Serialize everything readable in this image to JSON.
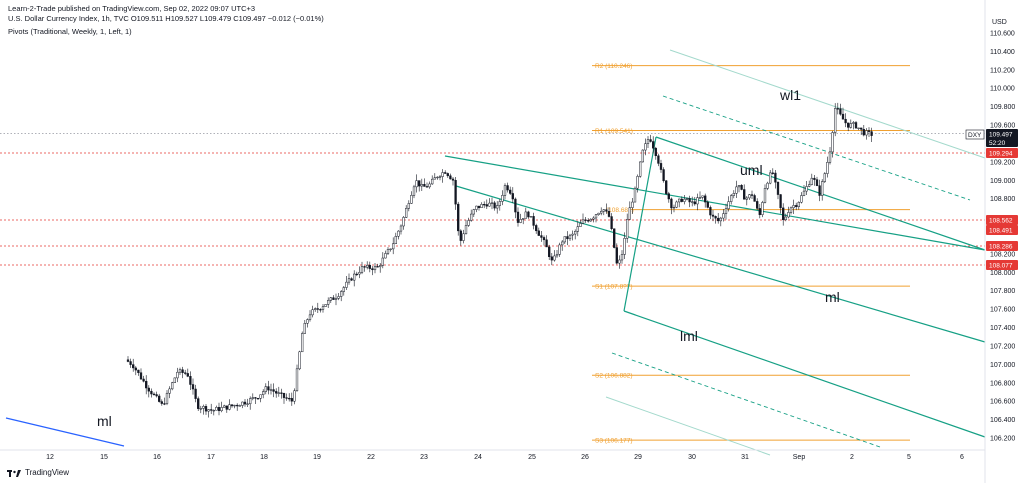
{
  "header": {
    "published": "Learn-2-Trade published on TradingView.com, Sep 02, 2022 09:07 UTC+3",
    "symbol_line": "U.S. Dollar Currency Index, 1h, TVC  O109.511  H109.527  L109.479  C109.497  −0.012 (−0.01%)",
    "indicator_line": "Pivots (Traditional, Weekly, 1, Left, 1)"
  },
  "branding": {
    "logo_text": "TradingView"
  },
  "chart_data": {
    "type": "candlestick",
    "symbol": "DXY",
    "currency": "USD",
    "x_tick_labels": [
      "12",
      "15",
      "16",
      "17",
      "18",
      "19",
      "22",
      "23",
      "24",
      "25",
      "26",
      "29",
      "30",
      "31",
      "Sep",
      "2",
      "5",
      "6"
    ],
    "y_tick_labels": [
      "110.600",
      "110.400",
      "110.200",
      "110.000",
      "109.800",
      "109.600",
      "109.200",
      "109.000",
      "108.800",
      "108.200",
      "108.000",
      "107.800",
      "107.600",
      "107.400",
      "107.200",
      "107.000",
      "106.800",
      "106.600",
      "106.400",
      "106.200"
    ],
    "y_range": [
      106.15,
      110.65
    ],
    "pivots": [
      {
        "label": "R2 (110.246)",
        "value": 110.246
      },
      {
        "label": "R1 (109.541)",
        "value": 109.541
      },
      {
        "label": "(108.681)",
        "value": 108.681
      },
      {
        "label": "S1 (107.8??)",
        "value": 107.85
      },
      {
        "label": "S2 (106.882)",
        "value": 106.882
      },
      {
        "label": "S3 (106.177)",
        "value": 106.177
      }
    ],
    "horizontal_levels": [
      {
        "value": 109.294,
        "label": "109.294",
        "style": "dotted",
        "color": "#e53935"
      },
      {
        "value": 108.562,
        "label": "108.562",
        "style": "dotted",
        "color": "#e53935"
      },
      {
        "value": 108.491,
        "label": "108.491",
        "style": "none",
        "color": "#e53935"
      },
      {
        "value": 108.286,
        "label": "108.286",
        "style": "dotted",
        "color": "#e53935"
      },
      {
        "value": 108.077,
        "label": "108.077",
        "style": "dotted",
        "color": "#e53935"
      }
    ],
    "last_price": {
      "symbol": "DXY",
      "value": "109.497",
      "countdown": "52:20"
    },
    "annotations": [
      "wl1",
      "uml",
      "ml",
      "lml",
      "ml"
    ],
    "price_series": [
      [
        16,
        106.2
      ],
      [
        16.3,
        106.3
      ],
      [
        16.5,
        106.55
      ],
      [
        16.7,
        106.6
      ],
      [
        16.9,
        106.55
      ],
      [
        17.0,
        106.8
      ],
      [
        17.15,
        106.45
      ],
      [
        17.3,
        106.55
      ],
      [
        17.5,
        106.45
      ],
      [
        17.7,
        106.48
      ],
      [
        17.9,
        106.38
      ],
      [
        18.0,
        106.55
      ],
      [
        18.2,
        106.8
      ],
      [
        18.4,
        106.65
      ],
      [
        18.6,
        106.72
      ],
      [
        18.8,
        106.55
      ],
      [
        19.0,
        106.7
      ],
      [
        19.15,
        106.95
      ],
      [
        19.3,
        107.35
      ],
      [
        19.45,
        107.55
      ],
      [
        19.6,
        107.6
      ],
      [
        19.8,
        107.7
      ],
      [
        20.0,
        107.9
      ],
      [
        20.2,
        108.05
      ],
      [
        20.4,
        108.0
      ],
      [
        20.6,
        108.1
      ],
      [
        20.8,
        108.05
      ],
      [
        21.0,
        108.3
      ],
      [
        21.2,
        108.5
      ],
      [
        21.4,
        108.8
      ],
      [
        21.55,
        109.05
      ],
      [
        21.7,
        108.9
      ],
      [
        21.9,
        108.95
      ],
      [
        22.05,
        109.1
      ],
      [
        22.2,
        108.95
      ],
      [
        22.35,
        108.55
      ],
      [
        22.5,
        108.0
      ],
      [
        22.65,
        108.3
      ],
      [
        22.8,
        108.5
      ],
      [
        23.0,
        108.65
      ],
      [
        23.2,
        108.75
      ],
      [
        23.35,
        108.55
      ],
      [
        23.5,
        108.7
      ],
      [
        23.65,
        109.05
      ],
      [
        23.8,
        108.7
      ],
      [
        24.0,
        108.55
      ],
      [
        24.2,
        108.4
      ],
      [
        24.4,
        108.15
      ],
      [
        24.6,
        108.3
      ],
      [
        24.8,
        108.4
      ],
      [
        25.0,
        108.45
      ],
      [
        25.2,
        108.6
      ],
      [
        25.4,
        108.4
      ],
      [
        25.55,
        108.2
      ],
      [
        25.7,
        107.8
      ],
      [
        25.85,
        108.5
      ],
      [
        26.0,
        109.0
      ],
      [
        26.15,
        109.35
      ],
      [
        26.3,
        109.3
      ],
      [
        26.45,
        109.1
      ],
      [
        26.6,
        108.8
      ],
      [
        26.8,
        108.7
      ],
      [
        27.0,
        108.55
      ],
      [
        27.2,
        108.8
      ],
      [
        27.4,
        108.7
      ],
      [
        27.6,
        108.8
      ],
      [
        27.8,
        108.45
      ],
      [
        28.0,
        108.75
      ],
      [
        28.2,
        109.05
      ],
      [
        28.4,
        108.8
      ],
      [
        28.6,
        108.45
      ],
      [
        28.8,
        108.7
      ],
      [
        29.0,
        108.65
      ],
      [
        29.2,
        108.95
      ],
      [
        29.4,
        108.8
      ],
      [
        29.6,
        108.95
      ],
      [
        29.8,
        109.25
      ],
      [
        29.95,
        109.7
      ],
      [
        30.1,
        109.6
      ],
      [
        30.25,
        109.5
      ]
    ]
  }
}
